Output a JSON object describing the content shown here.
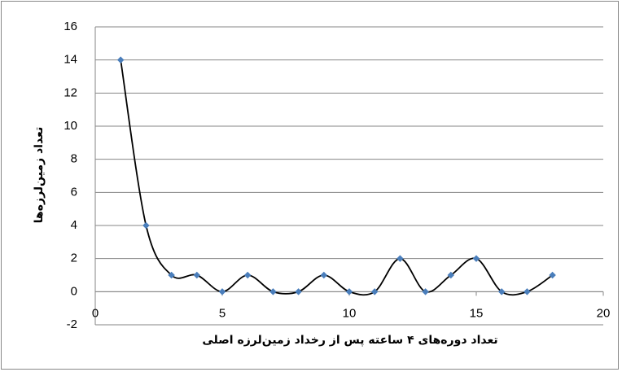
{
  "chart_data": {
    "type": "scatter",
    "x_label": "تعداد دوره‌های ۴ ساعته پس از رخداد زمین‌لرزه اصلی",
    "y_label": "تعداد زمین‌لرزه‌ها",
    "x": [
      1,
      2,
      3,
      4,
      5,
      6,
      7,
      8,
      9,
      10,
      11,
      12,
      13,
      14,
      15,
      16,
      17,
      18
    ],
    "values": [
      14,
      4,
      1,
      1,
      0,
      1,
      0,
      0,
      1,
      0,
      0,
      2,
      0,
      1,
      2,
      0,
      0,
      1
    ],
    "color": "#4a7ebb",
    "line_color": "#000000",
    "smooth": true,
    "xlim": [
      0,
      20
    ],
    "xticks": [
      0,
      5,
      10,
      15,
      20
    ],
    "ylim": [
      -2,
      16
    ],
    "yticks": [
      -2,
      0,
      2,
      4,
      6,
      8,
      10,
      12,
      14,
      16
    ],
    "grid": true
  }
}
